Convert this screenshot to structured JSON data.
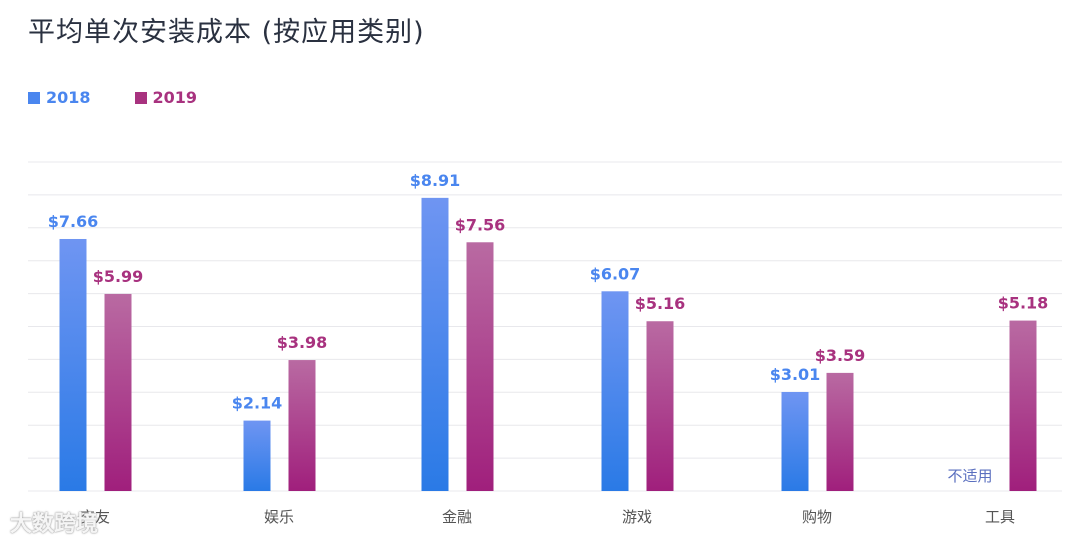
{
  "colors": {
    "series_2018": "#4a86ef",
    "series_2019": "#a8327f",
    "grid": "#e8e8ec",
    "tick": "#555555",
    "note": "#5a6fbf"
  },
  "chart_data": {
    "type": "bar",
    "title": "平均单次安装成本 (按应用类别)",
    "categories": [
      "交友",
      "娱乐",
      "金融",
      "游戏",
      "购物",
      "工具"
    ],
    "series": [
      {
        "name": "2018",
        "values": [
          7.66,
          2.14,
          8.91,
          6.07,
          3.01,
          null
        ],
        "labels": [
          "$7.66",
          "$2.14",
          "$8.91",
          "$6.07",
          "$3.01",
          ""
        ]
      },
      {
        "name": "2019",
        "values": [
          5.99,
          3.98,
          7.56,
          5.16,
          3.59,
          5.18
        ],
        "labels": [
          "$5.99",
          "$3.98",
          "$7.56",
          "$5.16",
          "$3.59",
          "$5.18"
        ]
      }
    ],
    "annotations": [
      {
        "category": "工具",
        "series": "2018",
        "text": "不适用"
      }
    ],
    "ylim": [
      0,
      10
    ],
    "grid": true,
    "legend": "top-left"
  },
  "watermark": "大数跨境"
}
